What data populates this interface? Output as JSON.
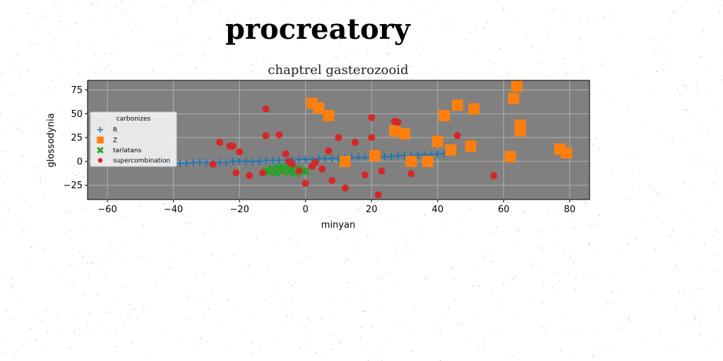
{
  "chart_data": {
    "type": "scatter",
    "suptitle": "procreatory",
    "title": "chaptrel gasterozooid",
    "xlabel": "minyan",
    "ylabel": "glossodynia",
    "xlim": [
      -66,
      86
    ],
    "ylim": [
      -40,
      85
    ],
    "xticks": [
      -60,
      -40,
      -20,
      0,
      20,
      40,
      60,
      80
    ],
    "yticks": [
      -25,
      0,
      25,
      50,
      75
    ],
    "grid": true,
    "legend": {
      "title": "carbonizes",
      "position": "upper left"
    },
    "colors": {
      "axes_bg": "#808080",
      "grid": "#b0b0b0"
    },
    "series": [
      {
        "name": "R",
        "marker": "plus",
        "color": "#1f77b4",
        "points": [
          [
            -44,
            -2
          ],
          [
            -42,
            -2
          ],
          [
            -40,
            -2
          ],
          [
            -38,
            -2
          ],
          [
            -36,
            -2
          ],
          [
            -34,
            -1
          ],
          [
            -32,
            -1
          ],
          [
            -30,
            -1
          ],
          [
            -28,
            -1
          ],
          [
            -26,
            -1
          ],
          [
            -24,
            -1
          ],
          [
            -22,
            0
          ],
          [
            -20,
            0
          ],
          [
            -18,
            0
          ],
          [
            -16,
            0
          ],
          [
            -14,
            0
          ],
          [
            -12,
            1
          ],
          [
            -10,
            1
          ],
          [
            -8,
            1
          ],
          [
            -6,
            1
          ],
          [
            -4,
            1
          ],
          [
            -2,
            2
          ],
          [
            0,
            2
          ],
          [
            2,
            2
          ],
          [
            4,
            3
          ],
          [
            6,
            3
          ],
          [
            8,
            3
          ],
          [
            10,
            3
          ],
          [
            12,
            4
          ],
          [
            14,
            4
          ],
          [
            16,
            4
          ],
          [
            18,
            4
          ],
          [
            20,
            5
          ],
          [
            22,
            5
          ],
          [
            24,
            5
          ],
          [
            26,
            5
          ],
          [
            28,
            6
          ],
          [
            30,
            6
          ],
          [
            32,
            6
          ],
          [
            34,
            7
          ],
          [
            36,
            7
          ],
          [
            38,
            7
          ],
          [
            40,
            8
          ],
          [
            42,
            8
          ]
        ]
      },
      {
        "name": "Z",
        "marker": "square",
        "color": "#ff7f0e",
        "points": [
          [
            2,
            61
          ],
          [
            4,
            56
          ],
          [
            7,
            48
          ],
          [
            12,
            0
          ],
          [
            21,
            6
          ],
          [
            27,
            32
          ],
          [
            30,
            29
          ],
          [
            32,
            0
          ],
          [
            37,
            0
          ],
          [
            40,
            21
          ],
          [
            42,
            48
          ],
          [
            44,
            12
          ],
          [
            46,
            59
          ],
          [
            50,
            16
          ],
          [
            51,
            55
          ],
          [
            62,
            5
          ],
          [
            63,
            66
          ],
          [
            64,
            79
          ],
          [
            65,
            32
          ],
          [
            65,
            38
          ],
          [
            77,
            13
          ],
          [
            79,
            9
          ]
        ]
      },
      {
        "name": "tarlatans",
        "marker": "x",
        "color": "#2ca02c",
        "points": [
          [
            -12,
            -10
          ],
          [
            -11,
            -11
          ],
          [
            -10,
            -8
          ],
          [
            -9,
            -12
          ],
          [
            -8,
            -9
          ],
          [
            -7,
            -10
          ],
          [
            -6,
            -7
          ],
          [
            -5,
            -11
          ],
          [
            -4,
            -9
          ],
          [
            -3,
            -12
          ],
          [
            -2,
            -8
          ],
          [
            -1,
            -10
          ],
          [
            0,
            -11
          ],
          [
            -8,
            -6
          ],
          [
            -5,
            -6
          ]
        ]
      },
      {
        "name": "supercombination",
        "marker": "circle",
        "color": "#d62728",
        "points": [
          [
            -28,
            -3
          ],
          [
            -26,
            20
          ],
          [
            -23,
            16
          ],
          [
            -22,
            16
          ],
          [
            -21,
            -12
          ],
          [
            -20,
            10
          ],
          [
            -17,
            -15
          ],
          [
            -13,
            -12
          ],
          [
            -12,
            55
          ],
          [
            -12,
            27
          ],
          [
            -8,
            28
          ],
          [
            -5,
            0
          ],
          [
            -4,
            -3
          ],
          [
            -2,
            -10
          ],
          [
            0,
            -23
          ],
          [
            2,
            -5
          ],
          [
            5,
            -8
          ],
          [
            7,
            11
          ],
          [
            8,
            -20
          ],
          [
            10,
            25
          ],
          [
            12,
            -28
          ],
          [
            15,
            20
          ],
          [
            18,
            -14
          ],
          [
            20,
            46
          ],
          [
            20,
            25
          ],
          [
            22,
            -35
          ],
          [
            23,
            -10
          ],
          [
            27,
            42
          ],
          [
            28,
            41
          ],
          [
            32,
            -13
          ],
          [
            46,
            27
          ],
          [
            57,
            -15
          ],
          [
            3,
            -1
          ],
          [
            -6,
            8
          ]
        ]
      }
    ]
  }
}
